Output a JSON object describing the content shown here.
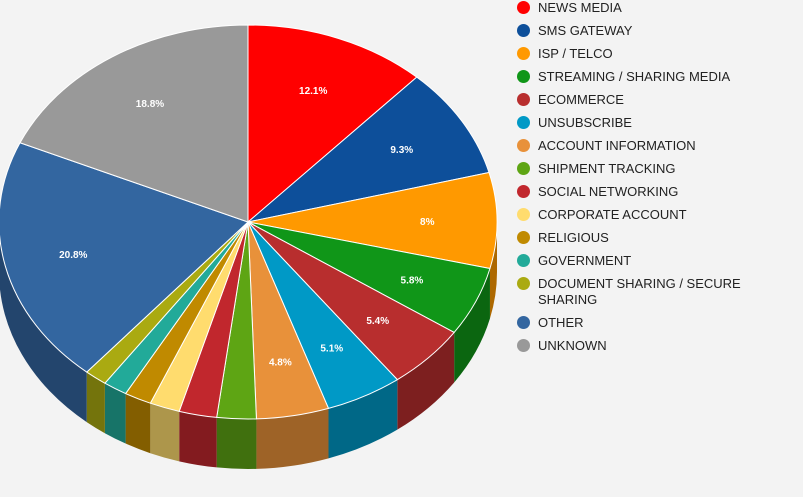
{
  "chart_data": {
    "type": "pie",
    "style": "3d",
    "legend_position": "right",
    "slices": [
      {
        "label": "NEWS MEDIA",
        "value": 12.1,
        "display": "12.1%",
        "color": "#ff0000"
      },
      {
        "label": "SMS GATEWAY",
        "value": 9.3,
        "display": "9.3%",
        "color": "#0d4f9a"
      },
      {
        "label": "ISP / TELCO",
        "value": 8,
        "display": "8%",
        "color": "#ff9900"
      },
      {
        "label": "STREAMING / SHARING MEDIA",
        "value": 5.8,
        "display": "5.8%",
        "color": "#109618"
      },
      {
        "label": "ECOMMERCE",
        "value": 5.4,
        "display": "5.4%",
        "color": "#b82e2e"
      },
      {
        "label": "UNSUBSCRIBE",
        "value": 5.1,
        "display": "5.1%",
        "color": "#0099c6"
      },
      {
        "label": "ACCOUNT INFORMATION",
        "value": 4.8,
        "display": "4.8%",
        "color": "#e8913a"
      },
      {
        "label": "SHIPMENT TRACKING",
        "value": 2.6,
        "display": "",
        "color": "#5ea514"
      },
      {
        "label": "SOCIAL NETWORKING",
        "value": 2.5,
        "display": "",
        "color": "#c1272d"
      },
      {
        "label": "CORPORATE ACCOUNT",
        "value": 2.0,
        "display": "",
        "color": "#ffdc6e"
      },
      {
        "label": "RELIGIOUS",
        "value": 1.8,
        "display": "",
        "color": "#c08a00"
      },
      {
        "label": "GOVERNMENT",
        "value": 1.6,
        "display": "",
        "color": "#22aa99"
      },
      {
        "label": "DOCUMENT SHARING / SECURE SHARING",
        "value": 1.5,
        "display": "",
        "color": "#aaaa11"
      },
      {
        "label": "OTHER",
        "value": 20.8,
        "display": "20.8%",
        "color": "#3366a0"
      },
      {
        "label": "UNKNOWN",
        "value": 18.8,
        "display": "18.8%",
        "color": "#999999"
      }
    ]
  }
}
